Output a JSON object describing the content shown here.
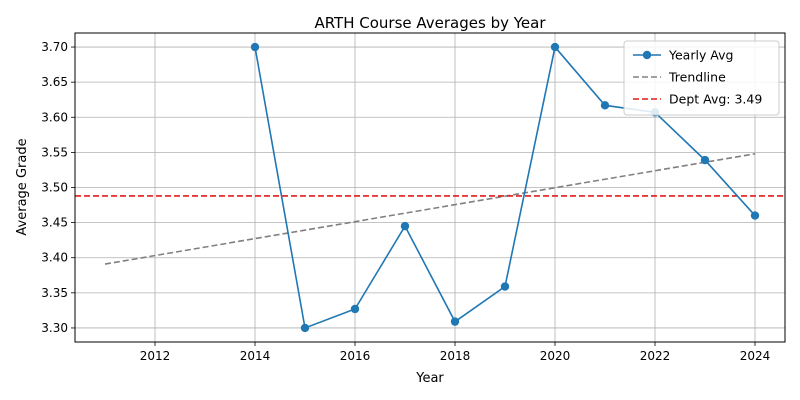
{
  "chart_data": {
    "type": "line",
    "title": "ARTH Course Averages by Year",
    "xlabel": "Year",
    "ylabel": "Average Grade",
    "xlim": [
      2010.4,
      2024.6
    ],
    "ylim": [
      3.28,
      3.72
    ],
    "x_ticks": [
      2012,
      2014,
      2016,
      2018,
      2020,
      2022,
      2024
    ],
    "y_ticks": [
      3.3,
      3.35,
      3.4,
      3.45,
      3.5,
      3.55,
      3.6,
      3.65,
      3.7
    ],
    "grid": true,
    "legend_position": "top-right",
    "series": [
      {
        "name": "Yearly Avg",
        "color": "#1f77b4",
        "style": "solid-with-markers",
        "x": [
          2014,
          2015,
          2016,
          2017,
          2018,
          2019,
          2020,
          2021,
          2022,
          2023,
          2024
        ],
        "y": [
          3.7,
          3.3,
          3.327,
          3.445,
          3.309,
          3.359,
          3.7,
          3.617,
          3.607,
          3.539,
          3.46
        ]
      },
      {
        "name": "Trendline",
        "color": "#808080",
        "style": "dashed",
        "x": [
          2011,
          2024
        ],
        "y": [
          3.391,
          3.548
        ]
      },
      {
        "name": "Dept Avg: 3.49",
        "color": "#e31a1c",
        "style": "dashed-horizontal",
        "value": 3.488
      }
    ]
  }
}
